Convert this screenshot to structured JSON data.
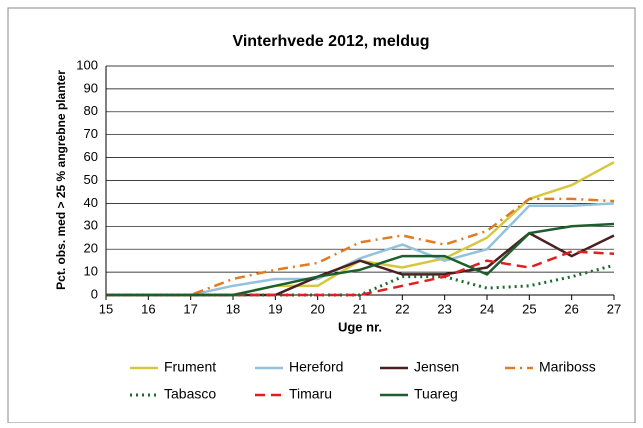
{
  "chart_data": {
    "type": "line",
    "title": "Vinterhvede 2012, meldug",
    "x_label": "Uge nr.",
    "y_label": "Pct. obs. med > 25 % angrebne planter",
    "x": [
      15,
      16,
      17,
      18,
      19,
      20,
      21,
      22,
      23,
      24,
      25,
      26,
      27
    ],
    "xlim": [
      15,
      27
    ],
    "xticks": [
      15,
      16,
      17,
      18,
      19,
      20,
      21,
      22,
      23,
      24,
      25,
      26,
      27
    ],
    "ylim": [
      0,
      100
    ],
    "yticks": [
      0,
      10,
      20,
      30,
      40,
      50,
      60,
      70,
      80,
      90,
      100
    ],
    "grid": true,
    "series": [
      {
        "name": "Frument",
        "color": "#d6c83e",
        "dash": "solid",
        "values": [
          0,
          0,
          0,
          0,
          4,
          4,
          15,
          12,
          16,
          25,
          42,
          48,
          58
        ]
      },
      {
        "name": "Hereford",
        "color": "#92c2dd",
        "dash": "solid",
        "values": [
          0,
          0,
          0,
          4,
          7,
          7,
          16,
          22,
          15,
          20,
          39,
          39,
          40
        ]
      },
      {
        "name": "Jensen",
        "color": "#4a2020",
        "dash": "solid",
        "values": [
          0,
          0,
          0,
          0,
          0,
          8,
          15,
          9,
          9,
          12,
          27,
          17,
          26
        ]
      },
      {
        "name": "Mariboss",
        "color": "#e07b24",
        "dash": "dashdot",
        "values": [
          0,
          0,
          0,
          7,
          11,
          14,
          23,
          26,
          22,
          28,
          42,
          42,
          41
        ]
      },
      {
        "name": "Tabasco",
        "color": "#1a6b2e",
        "dash": "dot",
        "values": [
          0,
          0,
          0,
          0,
          0,
          0,
          0,
          8,
          8,
          3,
          4,
          8,
          13
        ]
      },
      {
        "name": "Timaru",
        "color": "#e02020",
        "dash": "dash",
        "values": [
          0,
          0,
          0,
          0,
          0,
          0,
          0,
          4,
          8,
          15,
          12,
          19,
          18
        ]
      },
      {
        "name": "Tuareg",
        "color": "#1d5e2e",
        "dash": "solid",
        "values": [
          0,
          0,
          0,
          0,
          4,
          8,
          11,
          17,
          17,
          9,
          27,
          30,
          31
        ]
      }
    ]
  }
}
